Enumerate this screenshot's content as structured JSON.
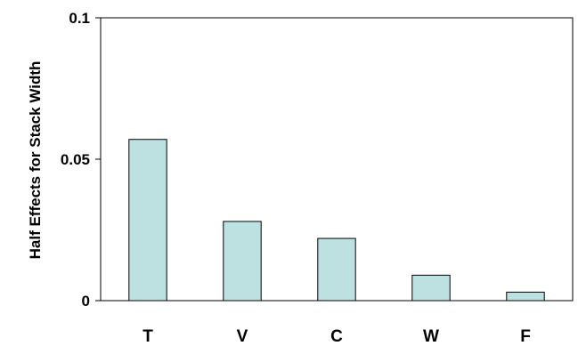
{
  "chart_data": {
    "type": "bar",
    "categories": [
      "T",
      "V",
      "C",
      "W",
      "F"
    ],
    "values": [
      0.057,
      0.028,
      0.022,
      0.009,
      0.003
    ],
    "ylabel": "Half Effects for Stack Width",
    "xlabel": "",
    "ylim": [
      0,
      0.1
    ],
    "yticks": [
      0,
      0.05,
      0.1
    ],
    "ytick_labels": [
      "0",
      "0.05",
      "0.1"
    ],
    "grid": false,
    "colors": {
      "bar_fill": "#bde0e1",
      "bar_stroke": "#000000"
    }
  }
}
